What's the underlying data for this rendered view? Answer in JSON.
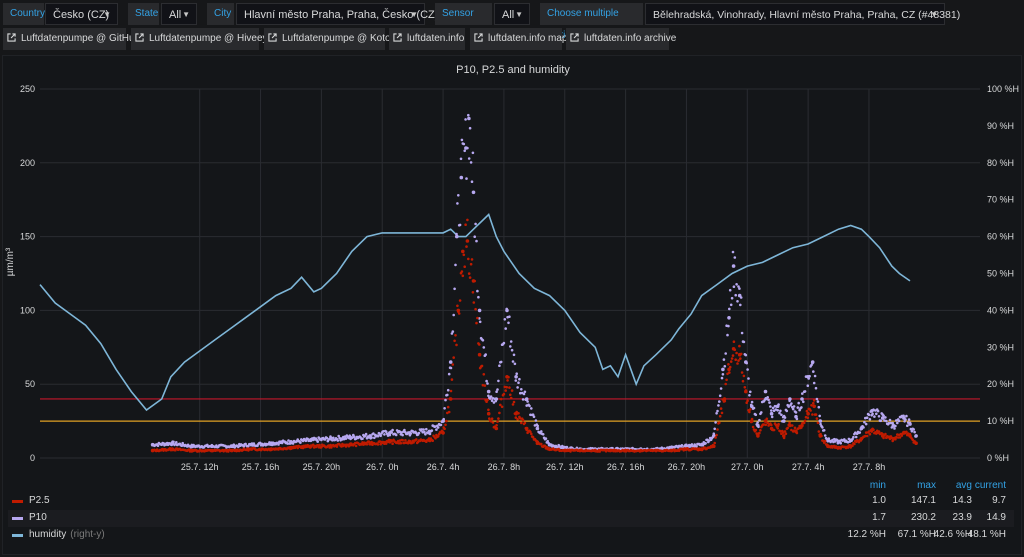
{
  "filters": {
    "country": {
      "label": "Country",
      "value": "Česko (CZ)"
    },
    "state": {
      "label": "State",
      "value": "All"
    },
    "city": {
      "label": "City",
      "value": "Hlavní město Praha, Praha, Česko (CZ)"
    },
    "sensor_type": {
      "label": "Sensor type",
      "value": "All"
    },
    "stations": {
      "label": "Choose multiple stations",
      "value": "Bělehradská, Vinohrady, Hlavní město Praha, Praha, CZ (#48381)"
    }
  },
  "links": [
    "Luftdatenpumpe @ GitHub",
    "Luftdatenpumpe @ Hiveeyes",
    "Luftdatenpumpe @ Kotori",
    "luftdaten.info",
    "luftdaten.info map",
    "luftdaten.info archive"
  ],
  "icons": {
    "dropdown": "chevron-down-icon",
    "link": "external-link-icon"
  },
  "colors": {
    "p25": "#bf1b00",
    "p10": "#b7a8f0",
    "humidity": "#7eb6d8",
    "threshold_red": "#c4162a",
    "threshold_orange": "#e0a024",
    "accent": "#33a2e5"
  },
  "legend": {
    "headers": {
      "min": "min",
      "max": "max",
      "avg": "avg",
      "current": "current"
    },
    "rows": [
      {
        "name": "P2.5",
        "note": "",
        "min": "1.0",
        "max": "147.1",
        "avg": "14.3",
        "current": "9.7"
      },
      {
        "name": "P10",
        "note": "",
        "min": "1.7",
        "max": "230.2",
        "avg": "23.9",
        "current": "14.9"
      },
      {
        "name": "humidity",
        "note": "(right-y)",
        "min": "12.2 %H",
        "max": "67.1 %H",
        "avg": "42.6 %H",
        "current": "48.1 %H"
      }
    ]
  },
  "chart_data": {
    "type": "scatter",
    "title": "P10, P2.5 and humidity",
    "ylabel": "µm/m³",
    "ylim": [
      0,
      250
    ],
    "y2lim": [
      0,
      100
    ],
    "y_ticks": [
      0,
      50,
      100,
      150,
      200,
      250
    ],
    "y2_ticks": [
      "0 %H",
      "10 %H",
      "20 %H",
      "30 %H",
      "40 %H",
      "50 %H",
      "60 %H",
      "70 %H",
      "80 %H",
      "90 %H",
      "100 %H"
    ],
    "x_range_hours": [
      25.5,
      87.3
    ],
    "x_ticks": [
      {
        "h": 36,
        "label": "25.7. 12h"
      },
      {
        "h": 40,
        "label": "25.7. 16h"
      },
      {
        "h": 44,
        "label": "25.7. 20h"
      },
      {
        "h": 48,
        "label": "26.7. 0h"
      },
      {
        "h": 52,
        "label": "26.7. 4h"
      },
      {
        "h": 56,
        "label": "26.7. 8h"
      },
      {
        "h": 60,
        "label": "26.7. 12h"
      },
      {
        "h": 64,
        "label": "26.7. 16h"
      },
      {
        "h": 68,
        "label": "26.7. 20h"
      },
      {
        "h": 72,
        "label": "27.7. 0h"
      },
      {
        "h": 76,
        "label": "27.7. 4h"
      },
      {
        "h": 80,
        "label": "27.7. 8h"
      }
    ],
    "grid": true,
    "legend_position": "bottom",
    "thresholds": [
      {
        "value": 40,
        "color": "red"
      },
      {
        "value": 25,
        "color": "orange"
      }
    ],
    "series": [
      {
        "name": "P2.5",
        "axis": "left",
        "style": "points",
        "points": [
          [
            32.9,
            5
          ],
          [
            34.2,
            6
          ],
          [
            35.5,
            5
          ],
          [
            36.8,
            5
          ],
          [
            38.1,
            5
          ],
          [
            39.4,
            6
          ],
          [
            40.7,
            6
          ],
          [
            42.0,
            7
          ],
          [
            43.3,
            8
          ],
          [
            44.6,
            8
          ],
          [
            45.9,
            9
          ],
          [
            47.2,
            10
          ],
          [
            48.5,
            11
          ],
          [
            49.8,
            11
          ],
          [
            51.1,
            12
          ],
          [
            52.0,
            17
          ],
          [
            52.5,
            40
          ],
          [
            53.0,
            100
          ],
          [
            53.3,
            140
          ],
          [
            53.6,
            147
          ],
          [
            54.0,
            120
          ],
          [
            54.4,
            70
          ],
          [
            55.0,
            30
          ],
          [
            55.5,
            20
          ],
          [
            56.2,
            55
          ],
          [
            56.8,
            30
          ],
          [
            57.5,
            20
          ],
          [
            58.2,
            10
          ],
          [
            59.0,
            6
          ],
          [
            60.0,
            5
          ],
          [
            61.0,
            5
          ],
          [
            62.0,
            5
          ],
          [
            63.0,
            5
          ],
          [
            64.0,
            5
          ],
          [
            65.0,
            5
          ],
          [
            66.0,
            5
          ],
          [
            67.0,
            5
          ],
          [
            68.0,
            6
          ],
          [
            69.0,
            6
          ],
          [
            69.8,
            8
          ],
          [
            70.5,
            40
          ],
          [
            70.8,
            60
          ],
          [
            71.1,
            74
          ],
          [
            71.5,
            70
          ],
          [
            71.9,
            45
          ],
          [
            72.3,
            25
          ],
          [
            72.7,
            15
          ],
          [
            73.2,
            25
          ],
          [
            73.6,
            20
          ],
          [
            74.0,
            22
          ],
          [
            74.4,
            15
          ],
          [
            74.8,
            22
          ],
          [
            75.2,
            18
          ],
          [
            75.6,
            22
          ],
          [
            76.0,
            30
          ],
          [
            76.4,
            35
          ],
          [
            76.8,
            15
          ],
          [
            77.3,
            8
          ],
          [
            78.0,
            7
          ],
          [
            78.8,
            8
          ],
          [
            79.5,
            13
          ],
          [
            80.2,
            19
          ],
          [
            80.9,
            15
          ],
          [
            81.6,
            13
          ],
          [
            82.3,
            17
          ],
          [
            82.7,
            15
          ],
          [
            83.1,
            10
          ]
        ]
      },
      {
        "name": "P10",
        "axis": "left",
        "style": "points",
        "points": [
          [
            32.9,
            9
          ],
          [
            34.2,
            10
          ],
          [
            35.5,
            8
          ],
          [
            36.8,
            8
          ],
          [
            38.1,
            8
          ],
          [
            39.4,
            9
          ],
          [
            40.7,
            10
          ],
          [
            42.0,
            11
          ],
          [
            43.3,
            12
          ],
          [
            44.6,
            13
          ],
          [
            45.9,
            14
          ],
          [
            47.2,
            15
          ],
          [
            48.5,
            17
          ],
          [
            49.8,
            17
          ],
          [
            51.1,
            18
          ],
          [
            52.0,
            25
          ],
          [
            52.5,
            65
          ],
          [
            52.9,
            150
          ],
          [
            53.2,
            190
          ],
          [
            53.5,
            210
          ],
          [
            53.7,
            230
          ],
          [
            54.0,
            180
          ],
          [
            54.4,
            100
          ],
          [
            55.0,
            45
          ],
          [
            55.5,
            40
          ],
          [
            56.2,
            100
          ],
          [
            56.8,
            55
          ],
          [
            57.5,
            40
          ],
          [
            58.2,
            20
          ],
          [
            59.0,
            9
          ],
          [
            60.0,
            7
          ],
          [
            61.0,
            6
          ],
          [
            62.0,
            6
          ],
          [
            63.0,
            6
          ],
          [
            64.0,
            6
          ],
          [
            65.0,
            6
          ],
          [
            66.0,
            6
          ],
          [
            67.0,
            7
          ],
          [
            68.0,
            8
          ],
          [
            69.0,
            9
          ],
          [
            69.8,
            15
          ],
          [
            70.4,
            60
          ],
          [
            70.8,
            95
          ],
          [
            71.1,
            130
          ],
          [
            71.5,
            110
          ],
          [
            71.9,
            65
          ],
          [
            72.3,
            35
          ],
          [
            72.7,
            22
          ],
          [
            73.2,
            45
          ],
          [
            73.6,
            30
          ],
          [
            74.0,
            35
          ],
          [
            74.4,
            25
          ],
          [
            74.8,
            40
          ],
          [
            75.2,
            28
          ],
          [
            75.6,
            40
          ],
          [
            76.0,
            55
          ],
          [
            76.3,
            65
          ],
          [
            76.8,
            25
          ],
          [
            77.3,
            12
          ],
          [
            78.0,
            11
          ],
          [
            78.8,
            12
          ],
          [
            79.5,
            20
          ],
          [
            80.2,
            32
          ],
          [
            80.9,
            27
          ],
          [
            81.6,
            22
          ],
          [
            82.3,
            27
          ],
          [
            82.7,
            23
          ],
          [
            83.1,
            15
          ]
        ]
      },
      {
        "name": "humidity",
        "axis": "right",
        "style": "line",
        "points": [
          [
            25.5,
            47
          ],
          [
            26.5,
            42
          ],
          [
            27.5,
            39
          ],
          [
            28.5,
            36
          ],
          [
            29.5,
            31
          ],
          [
            30.5,
            24
          ],
          [
            31.5,
            18
          ],
          [
            32.5,
            13
          ],
          [
            33.5,
            16
          ],
          [
            34.1,
            22
          ],
          [
            35,
            26
          ],
          [
            36,
            29
          ],
          [
            37,
            32
          ],
          [
            38,
            35
          ],
          [
            39,
            38
          ],
          [
            40,
            41
          ],
          [
            41,
            44
          ],
          [
            42,
            46
          ],
          [
            42.7,
            49
          ],
          [
            43.5,
            45
          ],
          [
            44,
            46
          ],
          [
            45,
            50
          ],
          [
            46,
            56
          ],
          [
            47,
            60
          ],
          [
            48,
            61
          ],
          [
            49,
            61
          ],
          [
            50,
            61
          ],
          [
            51,
            61
          ],
          [
            52,
            61
          ],
          [
            52.5,
            62
          ],
          [
            53,
            60
          ],
          [
            53.5,
            60
          ],
          [
            54,
            62
          ],
          [
            55,
            66
          ],
          [
            55.5,
            60
          ],
          [
            56,
            56
          ],
          [
            57,
            50
          ],
          [
            58,
            46
          ],
          [
            59,
            44
          ],
          [
            60,
            40
          ],
          [
            61,
            34
          ],
          [
            62,
            30
          ],
          [
            62.5,
            24
          ],
          [
            63,
            25
          ],
          [
            63.5,
            22
          ],
          [
            64,
            28
          ],
          [
            64.7,
            20
          ],
          [
            65.2,
            25
          ],
          [
            66,
            28
          ],
          [
            67,
            32
          ],
          [
            67.5,
            35
          ],
          [
            68.3,
            39
          ],
          [
            69,
            44
          ],
          [
            70,
            47
          ],
          [
            71,
            50
          ],
          [
            72,
            52
          ],
          [
            73,
            53
          ],
          [
            74,
            55
          ],
          [
            75,
            57
          ],
          [
            76,
            58
          ],
          [
            77,
            60
          ],
          [
            78,
            62
          ],
          [
            78.8,
            63
          ],
          [
            79.5,
            62
          ],
          [
            80,
            60
          ],
          [
            80.7,
            57
          ],
          [
            81.5,
            52
          ],
          [
            82,
            50
          ],
          [
            82.7,
            48
          ]
        ]
      }
    ]
  }
}
